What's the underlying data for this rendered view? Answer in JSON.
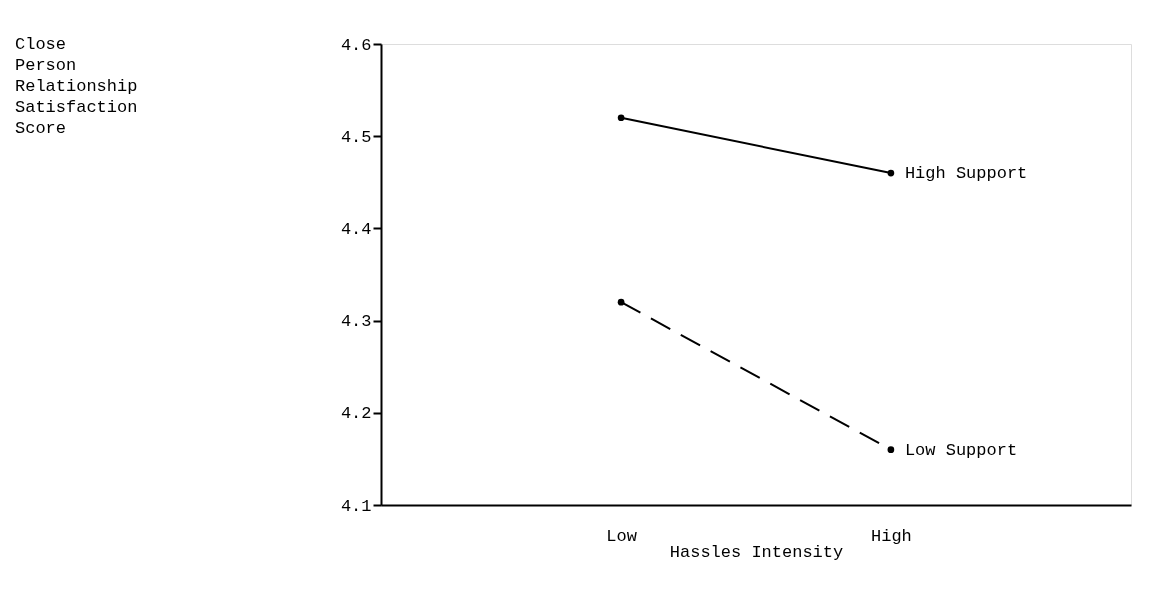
{
  "chart_data": {
    "type": "line",
    "xlabel": "Hassles Intensity",
    "annotations": [
      "Close Person Relationship Satisfaction Score"
    ],
    "categories": [
      "Low",
      "High"
    ],
    "series": [
      {
        "name": "High Support",
        "color": "#000000",
        "line_style": "solid",
        "values": [
          4.52,
          4.46
        ]
      },
      {
        "name": "Low Support",
        "color": "#000000",
        "line_style": "dashed",
        "values": [
          4.32,
          4.16
        ]
      }
    ],
    "ylim": [
      4.1,
      4.6
    ],
    "yticks": [
      4.1,
      4.2,
      4.3,
      4.4,
      4.5,
      4.6
    ],
    "marker": "circle"
  }
}
